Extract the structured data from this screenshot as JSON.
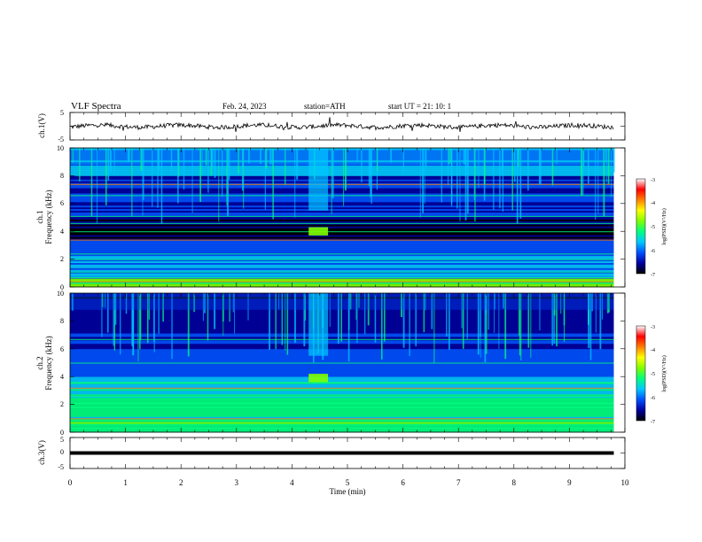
{
  "header": {
    "title": "VLF  Spectra",
    "date": "Feb. 24, 2023",
    "station": "station=ATH",
    "start": "start  UT  =    21: 10: 1"
  },
  "chart_data": [
    {
      "type": "line",
      "ylabel": "ch.1(V)",
      "ylim": [
        -5,
        5
      ],
      "yticks": [
        "5",
        "-5"
      ],
      "xlim": [
        0,
        10
      ],
      "description_of_series": "noisy waveform centred near 0 V",
      "baseline": 0
    },
    {
      "type": "heatmap",
      "ylabel_line1": "ch.1",
      "ylabel_line2": "Frequency (kHz)",
      "ylim": [
        0,
        10
      ],
      "yticks": [
        "0",
        "2",
        "4",
        "6",
        "8",
        "10"
      ],
      "xlim": [
        0,
        10
      ],
      "data_end_min": 9.8,
      "burst": {
        "start_min": 4.3,
        "end_min": 4.65,
        "band_khz": [
          3.7,
          4.3
        ]
      },
      "colorbar": {
        "label": "log(PSD)(V²/Hz)",
        "ticks": [
          "-3",
          "-4",
          "-5",
          "-6",
          "-7"
        ],
        "range": [
          -7,
          -3
        ]
      }
    },
    {
      "type": "heatmap",
      "ylabel_line1": "ch.2",
      "ylabel_line2": "Frequency (kHz)",
      "ylim": [
        0,
        10
      ],
      "yticks": [
        "0",
        "2",
        "4",
        "6",
        "8",
        "10"
      ],
      "xlim": [
        0,
        10
      ],
      "data_end_min": 9.8,
      "burst": {
        "start_min": 4.3,
        "end_min": 4.65,
        "band_khz": [
          3.6,
          4.2
        ]
      },
      "colorbar": {
        "label": "log(PSD)(V²/Hz)",
        "ticks": [
          "-3",
          "-4",
          "-5",
          "-6",
          "-7"
        ],
        "range": [
          -7,
          -3
        ]
      }
    },
    {
      "type": "line",
      "ylabel": "ch.3(V)",
      "ylim": [
        -5,
        5
      ],
      "yticks": [
        "5",
        "0",
        "-5"
      ],
      "xlim": [
        0,
        10
      ],
      "baseline": 0,
      "xlabel": "Time  (min)",
      "xticks": [
        "0",
        "1",
        "2",
        "3",
        "4",
        "5",
        "6",
        "7",
        "8",
        "9",
        "10"
      ]
    }
  ],
  "colors": {
    "background": "#000014",
    "colormap": [
      "#000000",
      "#0000a0",
      "#0050ff",
      "#00c8ff",
      "#00ff80",
      "#80ff00",
      "#ffff00",
      "#ff8000",
      "#ff0000",
      "#ffffff"
    ]
  }
}
